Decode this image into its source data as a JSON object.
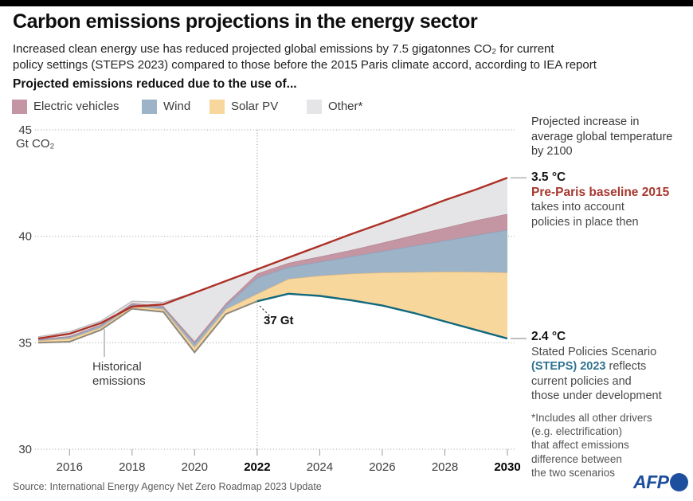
{
  "header": {
    "title": "Carbon emissions projections in the energy sector",
    "subtitle_line1": "Increased clean energy use has reduced projected global emissions by 7.5 gigatonnes CO₂ for current",
    "subtitle_line2": "policy settings (STEPS 2023) compared to those before the 2015 Paris climate accord, according to IEA report"
  },
  "legend": {
    "title": "Projected emissions reduced due to the use of...",
    "items": [
      {
        "label": "Electric vehicles",
        "color": "#c495a3"
      },
      {
        "label": "Wind",
        "color": "#9db3c8"
      },
      {
        "label": "Solar PV",
        "color": "#f8d79d"
      },
      {
        "label": "Other*",
        "color": "#e5e5e7"
      }
    ]
  },
  "chart_data": {
    "type": "area",
    "x": [
      2015,
      2016,
      2017,
      2018,
      2019,
      2020,
      2021,
      2022,
      2023,
      2024,
      2025,
      2026,
      2027,
      2028,
      2029,
      2030
    ],
    "xlim": [
      2015,
      2030
    ],
    "ylim": [
      30,
      45
    ],
    "yticks": [
      30,
      35,
      40,
      45
    ],
    "xticks": [
      2016,
      2018,
      2020,
      2022,
      2024,
      2026,
      2028,
      2030
    ],
    "xticks_bold": [
      2022,
      2030
    ],
    "ylabel": "Gt CO₂",
    "divider_year": 2022,
    "grid": true,
    "series": [
      {
        "name": "STEPS 2023 (historical then projected emissions)",
        "type": "line",
        "split_year": 2022,
        "color_before": "#8f887b",
        "color_after": "#11687d",
        "values": [
          35.0,
          35.05,
          35.6,
          36.6,
          36.45,
          34.55,
          36.35,
          36.95,
          37.3,
          37.2,
          37.0,
          36.75,
          36.4,
          36.0,
          35.6,
          35.2
        ]
      },
      {
        "name": "Solar PV",
        "type": "band",
        "fill": "#f8d79d",
        "stroke": "#dcb67e",
        "values": [
          35.1,
          35.2,
          35.72,
          36.72,
          36.58,
          34.8,
          36.58,
          37.3,
          38.0,
          38.15,
          38.25,
          38.3,
          38.32,
          38.34,
          38.33,
          38.3
        ]
      },
      {
        "name": "Wind",
        "type": "band",
        "fill": "#9db3c8",
        "stroke": "#87a2bc",
        "values": [
          35.14,
          35.27,
          35.8,
          36.8,
          36.66,
          34.97,
          36.75,
          38.05,
          38.55,
          38.8,
          39.05,
          39.3,
          39.55,
          39.8,
          40.05,
          40.3
        ]
      },
      {
        "name": "Electric vehicles",
        "type": "band",
        "fill": "#c495a3",
        "stroke": "#b2838f",
        "values": [
          35.17,
          35.31,
          35.85,
          36.86,
          36.72,
          35.07,
          36.85,
          38.25,
          38.75,
          39.05,
          39.35,
          39.7,
          40.05,
          40.4,
          40.75,
          41.05
        ]
      },
      {
        "name": "Other",
        "type": "band",
        "fill": "#e5e5e7",
        "stroke": "#bdbdbf",
        "values": [
          35.28,
          35.52,
          36.02,
          36.95,
          36.9,
          37.35,
          37.9,
          38.45,
          39.0,
          39.55,
          40.1,
          40.62,
          41.15,
          41.7,
          42.2,
          42.75
        ]
      },
      {
        "name": "Pre-Paris baseline 2015",
        "type": "line",
        "color": "#ad3026",
        "values": [
          35.2,
          35.42,
          35.92,
          36.7,
          36.8,
          37.35,
          37.9,
          38.45,
          39.0,
          39.55,
          40.1,
          40.62,
          41.15,
          41.7,
          42.2,
          42.75
        ]
      }
    ]
  },
  "annotations": {
    "historical": {
      "line1": "Historical",
      "line2": "emissions"
    },
    "value_2022": "37 Gt",
    "temp_note": [
      "Projected increase in",
      "average global temperature",
      "by 2100"
    ],
    "preparis": {
      "temp": "3.5 °C",
      "name": "Pre-Paris baseline 2015",
      "desc1": "takes into account",
      "desc2": "policies in place then"
    },
    "steps": {
      "temp": "2.4 °C",
      "line1": "Stated Policies Scenario",
      "name": "(STEPS) 2023",
      "after_name": " reflects",
      "line3": "current policies and",
      "line4": "those under development"
    },
    "footnote": [
      "*Includes all other drivers",
      "(e.g. electrification)",
      "that affect emissions",
      "difference between",
      "the two scenarios"
    ]
  },
  "footer": {
    "source": "Source: International Energy Agency Net Zero Roadmap 2023 Update",
    "logo": "AFP"
  },
  "colors": {
    "preparis_line": "#ad3026",
    "steps_line": "#11687d",
    "historical_line": "#8f887b",
    "preparis_text": "#a6382f",
    "steps_text": "#2f7390",
    "afp_blue": "#1d4f9e"
  }
}
